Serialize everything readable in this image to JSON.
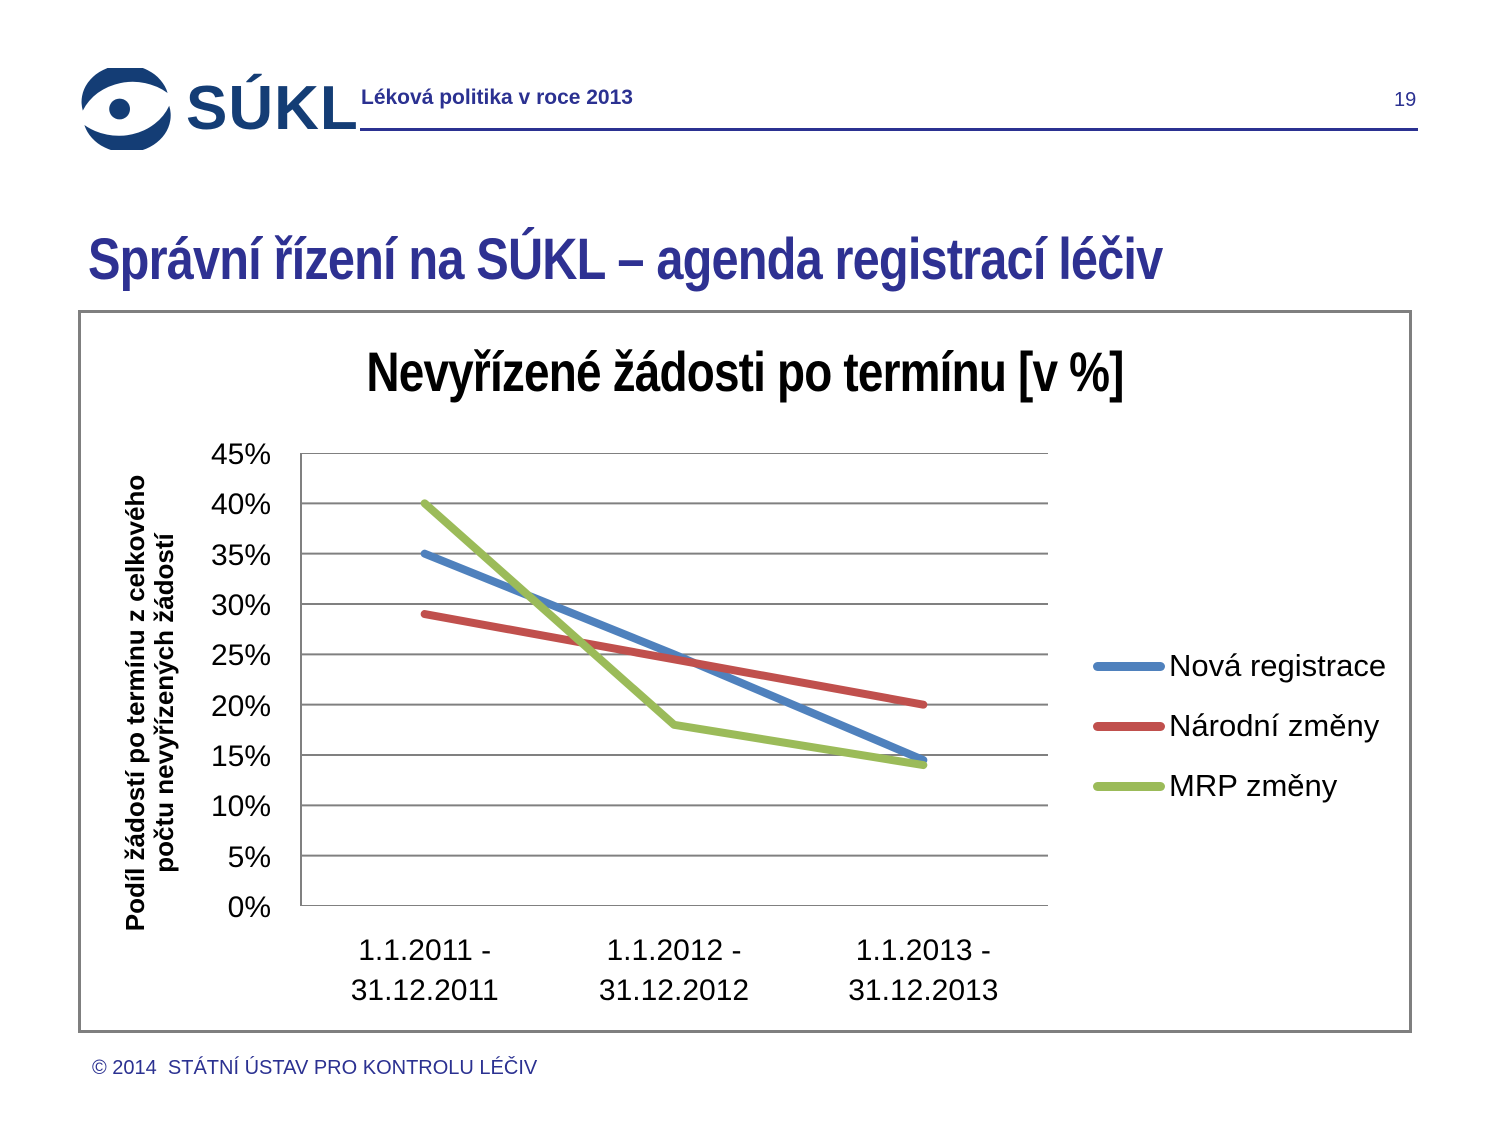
{
  "header": {
    "logo_text": "SÚKL",
    "logo_icon": "sukl-eye-icon",
    "logo_color": "#143d75",
    "title": "Léková politika v roce 2013",
    "page_number": "19",
    "accent_color": "#2b3191"
  },
  "slide": {
    "title": "Správní řízení na SÚKL – agenda registrací léčiv",
    "title_color": "#2e3192"
  },
  "chart_data": {
    "type": "line",
    "title": "Nevyřízené žádosti po termínu [v %]",
    "ylabel": "Podíl žádostí po termínu z celkového\npočtu nevyřízených žádostí",
    "xlabel": "",
    "categories": [
      "1.1.2011 -\n31.12.2011",
      "1.1.2012 -\n31.12.2012",
      "1.1.2013 -\n31.12.2013"
    ],
    "series": [
      {
        "name": "Nová registrace",
        "color": "#4f81bd",
        "values": [
          35,
          25,
          14.5
        ]
      },
      {
        "name": "Národní změny",
        "color": "#c0504d",
        "values": [
          29,
          24.5,
          20
        ]
      },
      {
        "name": "MRP změny",
        "color": "#9bbb59",
        "values": [
          40,
          18,
          14
        ]
      }
    ],
    "y_ticks": [
      "45%",
      "40%",
      "35%",
      "30%",
      "25%",
      "20%",
      "15%",
      "10%",
      "5%",
      "0%"
    ],
    "ylim": [
      0,
      45
    ],
    "grid": true,
    "gridline_color": "#808080",
    "legend_position": "right"
  },
  "footer": {
    "text": "© 2014  STÁTNÍ ÚSTAV PRO KONTROLU LÉČIV"
  }
}
